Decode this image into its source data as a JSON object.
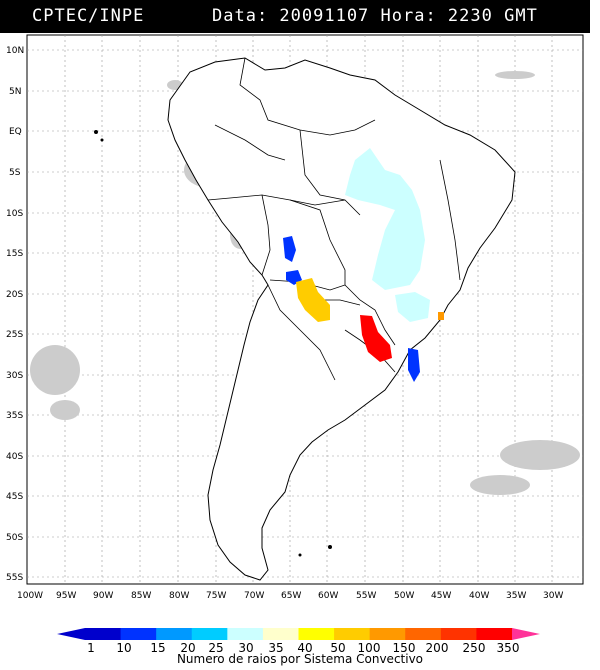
{
  "header": {
    "agency": "CPTEC/INPE",
    "datetime": "Data: 20091107 Hora: 2230 GMT"
  },
  "map": {
    "lat_labels": [
      "10N",
      "5N",
      "EQ",
      "5S",
      "10S",
      "15S",
      "20S",
      "25S",
      "30S",
      "35S",
      "40S",
      "45S",
      "50S",
      "55S"
    ],
    "lon_labels": [
      "100W",
      "95W",
      "90W",
      "85W",
      "80W",
      "75W",
      "70W",
      "65W",
      "60W",
      "55W",
      "50W",
      "45W",
      "40W",
      "35W",
      "30W"
    ],
    "extent": {
      "lon_min": -100,
      "lon_max": -30,
      "lat_min": -56,
      "lat_max": 12
    }
  },
  "legend": {
    "ticks": [
      "1",
      "10",
      "15",
      "20",
      "25",
      "30",
      "35",
      "40",
      "50",
      "100",
      "150",
      "200",
      "250",
      "350"
    ],
    "colors": [
      "#0000cc",
      "#0033ff",
      "#0099ff",
      "#00ccff",
      "#ccffff",
      "#ffffcc",
      "#ffff00",
      "#ffcc00",
      "#ff9900",
      "#ff6600",
      "#ff3300",
      "#ff0000",
      "#cc0066",
      "#ff3399"
    ],
    "title": "Numero de raios por Sistema Convectivo"
  }
}
